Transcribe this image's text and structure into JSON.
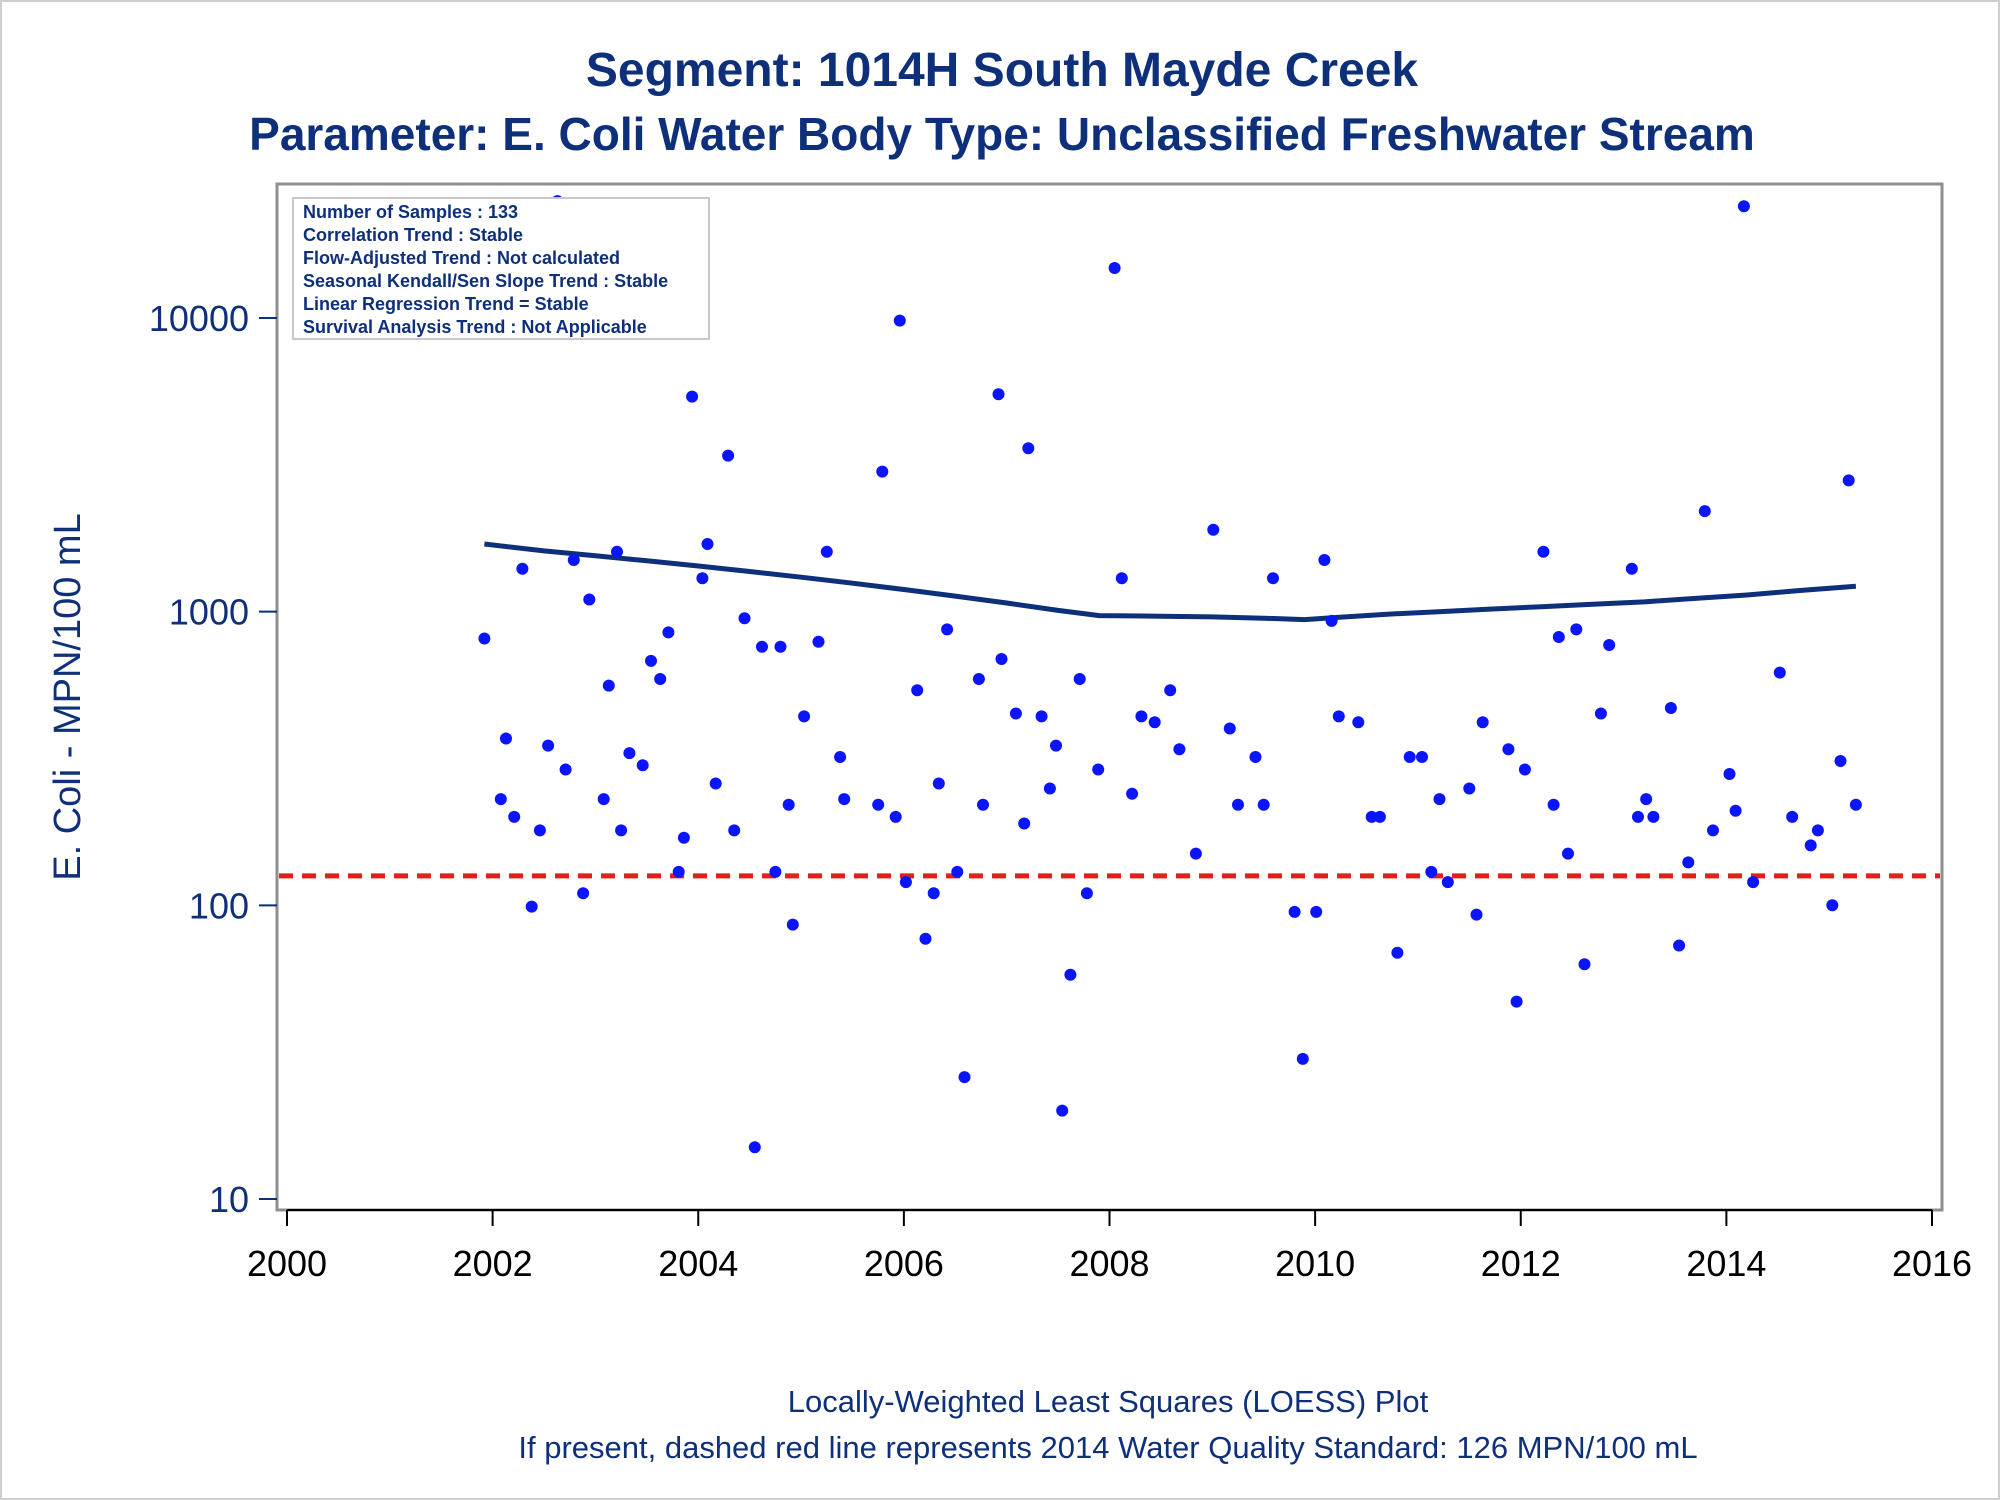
{
  "chart_data": {
    "type": "scatter",
    "title": "Segment: 1014H  South Mayde Creek",
    "subtitle": "Parameter: E. Coli   Water Body Type: Unclassified Freshwater Stream",
    "ylabel": "E. Coli - MPN/100 mL",
    "xlabel": "",
    "xlim": [
      2000,
      2016
    ],
    "ylim": [
      10,
      27000
    ],
    "yscale": "log",
    "x_ticks": [
      "2000",
      "2002",
      "2004",
      "2006",
      "2008",
      "2010",
      "2012",
      "2014",
      "2016"
    ],
    "y_ticks": [
      "10",
      "100",
      "1000",
      "10000"
    ],
    "grid": false,
    "stats_box": [
      "Number of Samples : 133",
      "Correlation Trend : Stable",
      "Flow-Adjusted Trend : Not calculated",
      "Seasonal Kendall/Sen Slope Trend : Stable",
      "Linear Regression Trend = Stable",
      "Survival Analysis Trend : Not Applicable"
    ],
    "standard_line": {
      "value": 126,
      "color": "#e0211a",
      "style": "dashed"
    },
    "colors": {
      "points": "#0a14ff",
      "loess": "#0e2f7a",
      "text": "#0e2f7a"
    },
    "points": [
      [
        2001.92,
        810
      ],
      [
        2002.08,
        230
      ],
      [
        2002.13,
        370
      ],
      [
        2002.21,
        200
      ],
      [
        2002.29,
        1400
      ],
      [
        2002.38,
        99
      ],
      [
        2002.46,
        180
      ],
      [
        2002.54,
        350
      ],
      [
        2002.63,
        25000
      ],
      [
        2002.71,
        290
      ],
      [
        2002.79,
        1500
      ],
      [
        2002.88,
        110
      ],
      [
        2002.94,
        1100
      ],
      [
        2003.08,
        230
      ],
      [
        2003.13,
        560
      ],
      [
        2003.21,
        1600
      ],
      [
        2003.25,
        180
      ],
      [
        2003.33,
        330
      ],
      [
        2003.46,
        300
      ],
      [
        2003.54,
        680
      ],
      [
        2003.63,
        590
      ],
      [
        2003.71,
        850
      ],
      [
        2003.81,
        130
      ],
      [
        2003.86,
        170
      ],
      [
        2003.94,
        5400
      ],
      [
        2004.04,
        1300
      ],
      [
        2004.09,
        1700
      ],
      [
        2004.17,
        260
      ],
      [
        2004.29,
        3400
      ],
      [
        2004.35,
        180
      ],
      [
        2004.45,
        950
      ],
      [
        2004.55,
        15
      ],
      [
        2004.62,
        760
      ],
      [
        2004.75,
        130
      ],
      [
        2004.8,
        760
      ],
      [
        2004.88,
        220
      ],
      [
        2004.92,
        86
      ],
      [
        2005.03,
        440
      ],
      [
        2005.17,
        790
      ],
      [
        2005.25,
        1600
      ],
      [
        2005.38,
        320
      ],
      [
        2005.42,
        230
      ],
      [
        2005.79,
        3000
      ],
      [
        2005.75,
        220
      ],
      [
        2005.92,
        200
      ],
      [
        2005.96,
        9800
      ],
      [
        2006.02,
        120
      ],
      [
        2006.13,
        540
      ],
      [
        2006.21,
        77
      ],
      [
        2006.29,
        110
      ],
      [
        2006.34,
        260
      ],
      [
        2006.42,
        870
      ],
      [
        2006.52,
        130
      ],
      [
        2006.59,
        26
      ],
      [
        2006.73,
        590
      ],
      [
        2006.77,
        220
      ],
      [
        2006.92,
        5500
      ],
      [
        2006.95,
        690
      ],
      [
        2007.09,
        450
      ],
      [
        2007.17,
        190
      ],
      [
        2007.21,
        3600
      ],
      [
        2007.34,
        440
      ],
      [
        2007.42,
        250
      ],
      [
        2007.48,
        350
      ],
      [
        2007.54,
        20
      ],
      [
        2007.62,
        58
      ],
      [
        2007.71,
        590
      ],
      [
        2007.78,
        110
      ],
      [
        2007.89,
        290
      ],
      [
        2008.05,
        14800
      ],
      [
        2008.12,
        1300
      ],
      [
        2008.22,
        240
      ],
      [
        2008.31,
        440
      ],
      [
        2008.44,
        420
      ],
      [
        2008.59,
        540
      ],
      [
        2008.68,
        340
      ],
      [
        2008.84,
        150
      ],
      [
        2009.01,
        1900
      ],
      [
        2009.17,
        400
      ],
      [
        2009.25,
        220
      ],
      [
        2009.42,
        320
      ],
      [
        2009.5,
        220
      ],
      [
        2009.59,
        1300
      ],
      [
        2009.8,
        95
      ],
      [
        2009.88,
        30
      ],
      [
        2010.01,
        95
      ],
      [
        2010.09,
        1500
      ],
      [
        2010.16,
        930
      ],
      [
        2010.23,
        440
      ],
      [
        2010.42,
        420
      ],
      [
        2010.55,
        200
      ],
      [
        2010.63,
        200
      ],
      [
        2010.8,
        69
      ],
      [
        2010.92,
        320
      ],
      [
        2011.04,
        320
      ],
      [
        2011.13,
        130
      ],
      [
        2011.21,
        230
      ],
      [
        2011.29,
        120
      ],
      [
        2011.5,
        250
      ],
      [
        2011.57,
        93
      ],
      [
        2011.63,
        420
      ],
      [
        2011.88,
        340
      ],
      [
        2011.96,
        47
      ],
      [
        2012.04,
        290
      ],
      [
        2012.22,
        1600
      ],
      [
        2012.32,
        220
      ],
      [
        2012.37,
        820
      ],
      [
        2012.46,
        150
      ],
      [
        2012.54,
        870
      ],
      [
        2012.62,
        63
      ],
      [
        2012.78,
        450
      ],
      [
        2012.86,
        770
      ],
      [
        2013.08,
        1400
      ],
      [
        2013.14,
        200
      ],
      [
        2013.22,
        230
      ],
      [
        2013.29,
        200
      ],
      [
        2013.46,
        470
      ],
      [
        2013.54,
        73
      ],
      [
        2013.63,
        140
      ],
      [
        2013.79,
        2200
      ],
      [
        2013.87,
        180
      ],
      [
        2014.03,
        280
      ],
      [
        2014.09,
        210
      ],
      [
        2014.17,
        24000
      ],
      [
        2014.26,
        120
      ],
      [
        2014.52,
        620
      ],
      [
        2014.64,
        200
      ],
      [
        2014.82,
        160
      ],
      [
        2014.89,
        180
      ],
      [
        2015.03,
        100
      ],
      [
        2015.11,
        310
      ],
      [
        2015.19,
        2800
      ],
      [
        2015.26,
        220
      ]
    ],
    "loess": [
      [
        2001.92,
        1700
      ],
      [
        2002.5,
        1610
      ],
      [
        2003.0,
        1550
      ],
      [
        2003.5,
        1490
      ],
      [
        2004.0,
        1430
      ],
      [
        2004.5,
        1370
      ],
      [
        2005.0,
        1310
      ],
      [
        2005.5,
        1250
      ],
      [
        2006.0,
        1190
      ],
      [
        2006.5,
        1130
      ],
      [
        2007.0,
        1070
      ],
      [
        2007.5,
        1010
      ],
      [
        2007.9,
        970
      ],
      [
        2008.5,
        965
      ],
      [
        2009.0,
        960
      ],
      [
        2009.5,
        950
      ],
      [
        2009.9,
        940
      ],
      [
        2010.2,
        955
      ],
      [
        2010.7,
        980
      ],
      [
        2011.2,
        1000
      ],
      [
        2011.7,
        1020
      ],
      [
        2012.2,
        1040
      ],
      [
        2012.7,
        1060
      ],
      [
        2013.2,
        1080
      ],
      [
        2013.7,
        1110
      ],
      [
        2014.2,
        1140
      ],
      [
        2014.7,
        1180
      ],
      [
        2015.26,
        1220
      ]
    ],
    "footnotes": [
      "Locally-Weighted Least Squares (LOESS) Plot",
      "If present, dashed red line represents 2014 Water Quality Standard: 126 MPN/100 mL"
    ]
  }
}
